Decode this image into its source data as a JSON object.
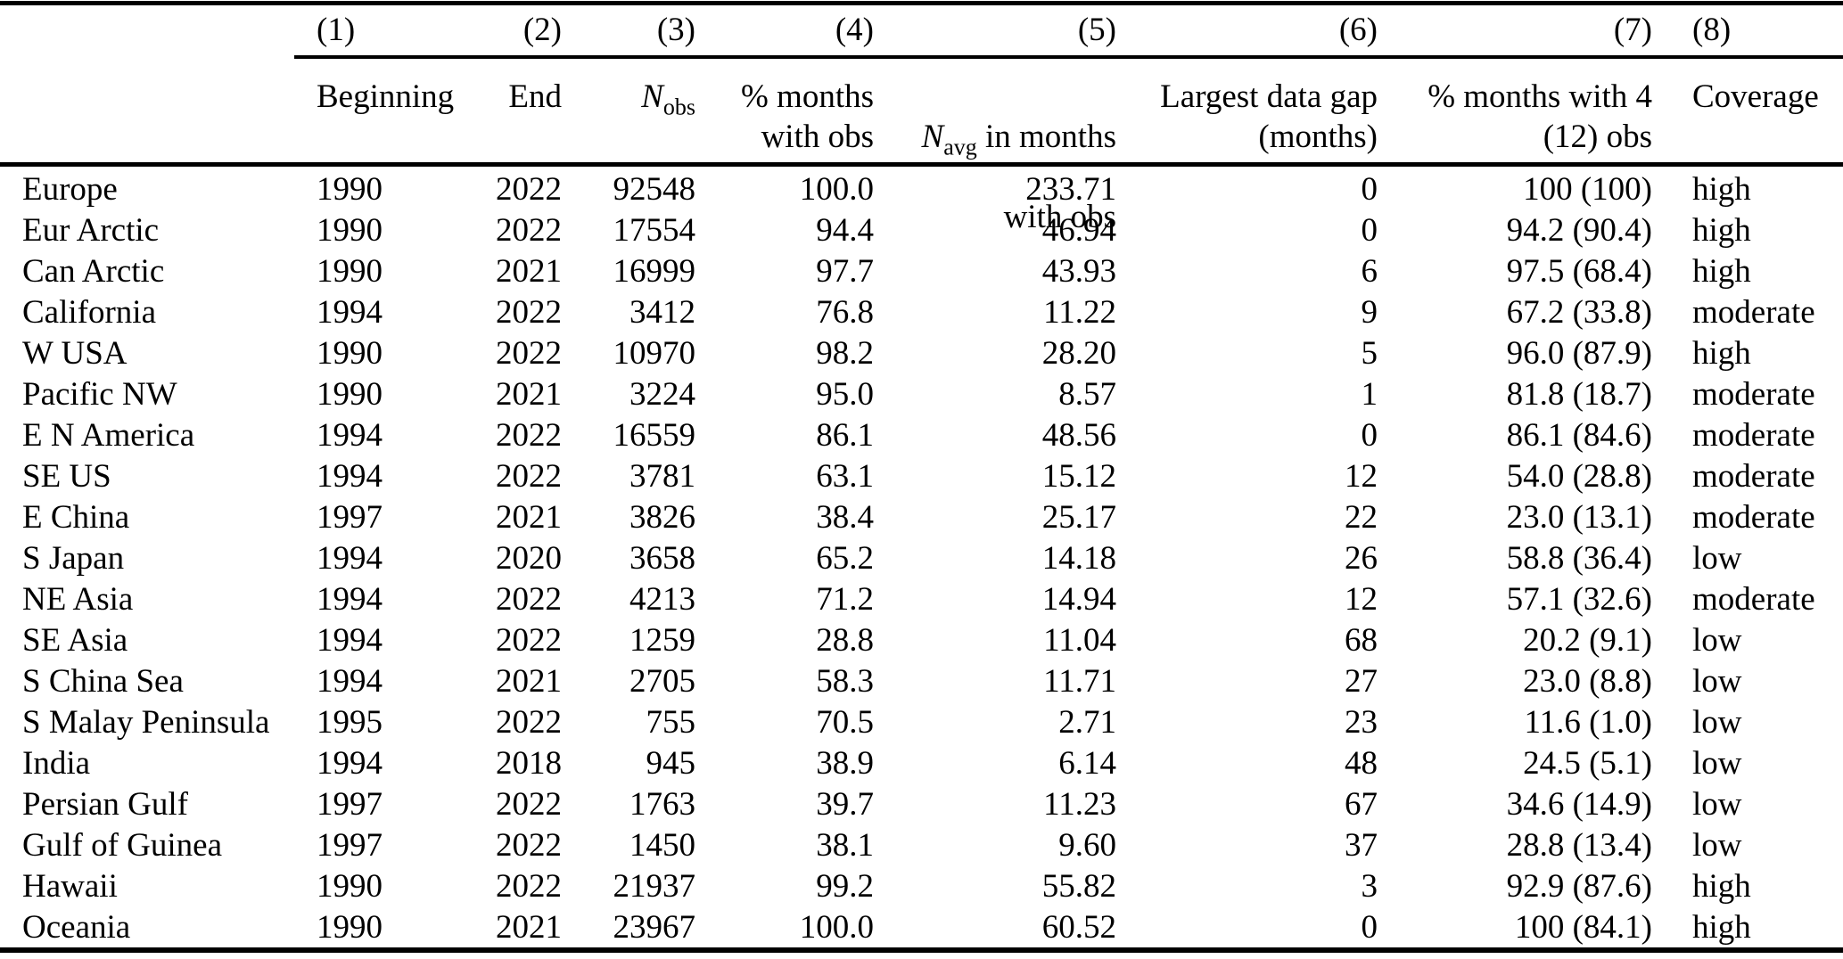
{
  "table": {
    "col_numbers": [
      "(1)",
      "(2)",
      "(3)",
      "(4)",
      "(5)",
      "(6)",
      "(7)",
      "(8)"
    ],
    "headers": {
      "beginning": "Beginning",
      "end": "End",
      "n_obs_base": "N",
      "n_obs_sub": "obs",
      "pct_months": "% months\nwith obs",
      "n_avg_base": "N",
      "n_avg_sub": "avg",
      "n_avg_rest": " in months",
      "n_avg_line2": "with obs",
      "largest_gap": "Largest data gap\n(months)",
      "pct_months_4": "% months with 4\n(12) obs",
      "coverage": "Coverage"
    },
    "rows": [
      {
        "region": "Europe",
        "beginning": "1990",
        "end": "2022",
        "n_obs": "92548",
        "pct_months": "100.0",
        "n_avg": "233.71",
        "gap": "0",
        "pct4": "100 (100)",
        "coverage": "high"
      },
      {
        "region": "Eur Arctic",
        "beginning": "1990",
        "end": "2022",
        "n_obs": "17554",
        "pct_months": "94.4",
        "n_avg": "46.94",
        "gap": "0",
        "pct4": "94.2 (90.4)",
        "coverage": "high"
      },
      {
        "region": "Can Arctic",
        "beginning": "1990",
        "end": "2021",
        "n_obs": "16999",
        "pct_months": "97.7",
        "n_avg": "43.93",
        "gap": "6",
        "pct4": "97.5 (68.4)",
        "coverage": "high"
      },
      {
        "region": "California",
        "beginning": "1994",
        "end": "2022",
        "n_obs": "3412",
        "pct_months": "76.8",
        "n_avg": "11.22",
        "gap": "9",
        "pct4": "67.2 (33.8)",
        "coverage": "moderate"
      },
      {
        "region": "W USA",
        "beginning": "1990",
        "end": "2022",
        "n_obs": "10970",
        "pct_months": "98.2",
        "n_avg": "28.20",
        "gap": "5",
        "pct4": "96.0 (87.9)",
        "coverage": "high"
      },
      {
        "region": "Pacific NW",
        "beginning": "1990",
        "end": "2021",
        "n_obs": "3224",
        "pct_months": "95.0",
        "n_avg": "8.57",
        "gap": "1",
        "pct4": "81.8 (18.7)",
        "coverage": "moderate"
      },
      {
        "region": "E N America",
        "beginning": "1994",
        "end": "2022",
        "n_obs": "16559",
        "pct_months": "86.1",
        "n_avg": "48.56",
        "gap": "0",
        "pct4": "86.1 (84.6)",
        "coverage": "moderate"
      },
      {
        "region": "SE US",
        "beginning": "1994",
        "end": "2022",
        "n_obs": "3781",
        "pct_months": "63.1",
        "n_avg": "15.12",
        "gap": "12",
        "pct4": "54.0 (28.8)",
        "coverage": "moderate"
      },
      {
        "region": "E China",
        "beginning": "1997",
        "end": "2021",
        "n_obs": "3826",
        "pct_months": "38.4",
        "n_avg": "25.17",
        "gap": "22",
        "pct4": "23.0 (13.1)",
        "coverage": "moderate"
      },
      {
        "region": "S Japan",
        "beginning": "1994",
        "end": "2020",
        "n_obs": "3658",
        "pct_months": "65.2",
        "n_avg": "14.18",
        "gap": "26",
        "pct4": "58.8 (36.4)",
        "coverage": "low"
      },
      {
        "region": "NE Asia",
        "beginning": "1994",
        "end": "2022",
        "n_obs": "4213",
        "pct_months": "71.2",
        "n_avg": "14.94",
        "gap": "12",
        "pct4": "57.1 (32.6)",
        "coverage": "moderate"
      },
      {
        "region": "SE Asia",
        "beginning": "1994",
        "end": "2022",
        "n_obs": "1259",
        "pct_months": "28.8",
        "n_avg": "11.04",
        "gap": "68",
        "pct4": "20.2 (9.1)",
        "coverage": "low"
      },
      {
        "region": "S China Sea",
        "beginning": "1994",
        "end": "2021",
        "n_obs": "2705",
        "pct_months": "58.3",
        "n_avg": "11.71",
        "gap": "27",
        "pct4": "23.0 (8.8)",
        "coverage": "low"
      },
      {
        "region": "S Malay Peninsula",
        "beginning": "1995",
        "end": "2022",
        "n_obs": "755",
        "pct_months": "70.5",
        "n_avg": "2.71",
        "gap": "23",
        "pct4": "11.6 (1.0)",
        "coverage": "low"
      },
      {
        "region": "India",
        "beginning": "1994",
        "end": "2018",
        "n_obs": "945",
        "pct_months": "38.9",
        "n_avg": "6.14",
        "gap": "48",
        "pct4": "24.5 (5.1)",
        "coverage": "low"
      },
      {
        "region": "Persian Gulf",
        "beginning": "1997",
        "end": "2022",
        "n_obs": "1763",
        "pct_months": "39.7",
        "n_avg": "11.23",
        "gap": "67",
        "pct4": "34.6 (14.9)",
        "coverage": "low"
      },
      {
        "region": "Gulf of Guinea",
        "beginning": "1997",
        "end": "2022",
        "n_obs": "1450",
        "pct_months": "38.1",
        "n_avg": "9.60",
        "gap": "37",
        "pct4": "28.8 (13.4)",
        "coverage": "low"
      },
      {
        "region": "Hawaii",
        "beginning": "1990",
        "end": "2022",
        "n_obs": "21937",
        "pct_months": "99.2",
        "n_avg": "55.82",
        "gap": "3",
        "pct4": "92.9 (87.6)",
        "coverage": "high"
      },
      {
        "region": "Oceania",
        "beginning": "1990",
        "end": "2021",
        "n_obs": "23967",
        "pct_months": "100.0",
        "n_avg": "60.52",
        "gap": "0",
        "pct4": "100 (84.1)",
        "coverage": "high"
      }
    ]
  }
}
